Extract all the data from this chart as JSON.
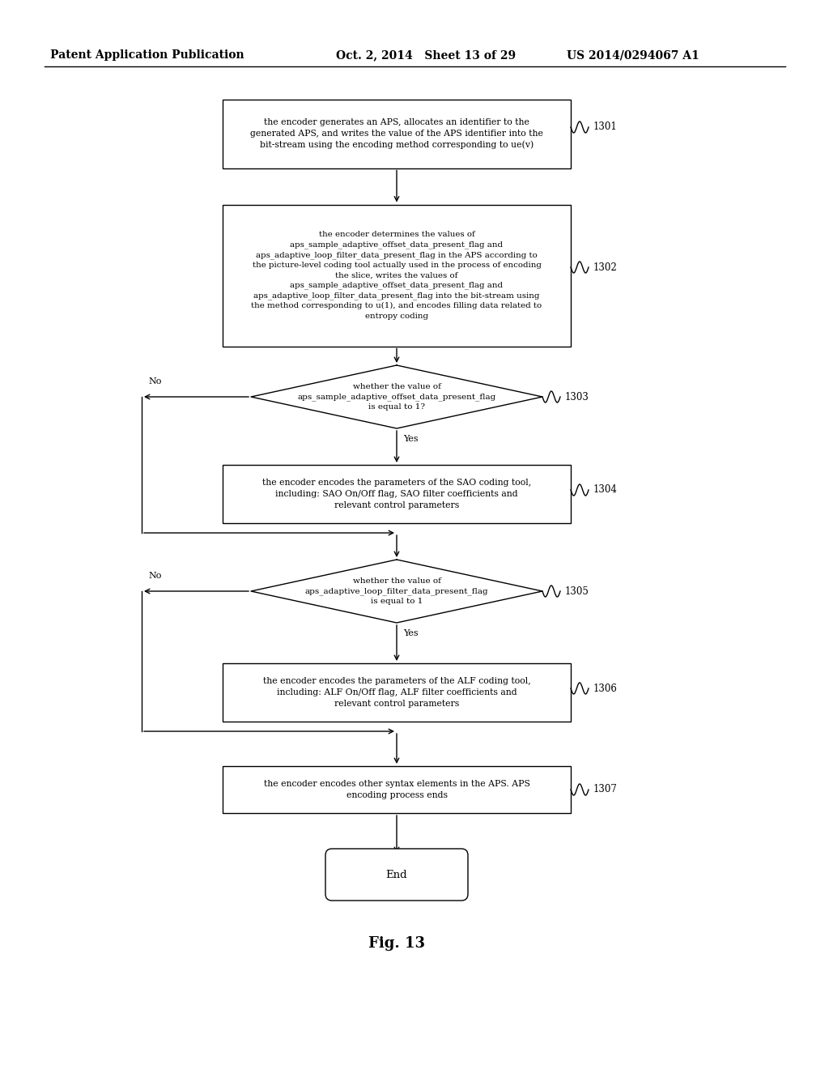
{
  "header_left": "Patent Application Publication",
  "header_mid": "Oct. 2, 2014   Sheet 13 of 29",
  "header_right": "US 2014/0294067 A1",
  "fig_label": "Fig. 13",
  "background_color": "#ffffff",
  "box1301_text": "the encoder generates an APS, allocates an identifier to the\ngenerated APS, and writes the value of the APS identifier into the\nbit-stream using the encoding method corresponding to ue(v)",
  "box1302_text": "the encoder determines the values of\naps_sample_adaptive_offset_data_present_flag and\naps_adaptive_loop_filter_data_present_flag in the APS according to\nthe picture-level coding tool actually used in the process of encoding\nthe slice, writes the values of\naps_sample_adaptive_offset_data_present_flag and\naps_adaptive_loop_filter_data_present_flag into the bit-stream using\nthe method corresponding to u(1), and encodes filling data related to\nentropy coding",
  "box1303_text": "whether the value of\naps_sample_adaptive_offset_data_present_flag\nis equal to 1?",
  "box1304_text": "the encoder encodes the parameters of the SAO coding tool,\nincluding: SAO On/Off flag, SAO filter coefficients and\nrelevant control parameters",
  "box1305_text": "whether the value of\naps_adaptive_loop_filter_data_present_flag\nis equal to 1",
  "box1306_text": "the encoder encodes the parameters of the ALF coding tool,\nincluding: ALF On/Off flag, ALF filter coefficients and\nrelevant control parameters",
  "box1307_text": "the encoder encodes other syntax elements in the APS. APS\nencoding process ends",
  "end_text": "End"
}
